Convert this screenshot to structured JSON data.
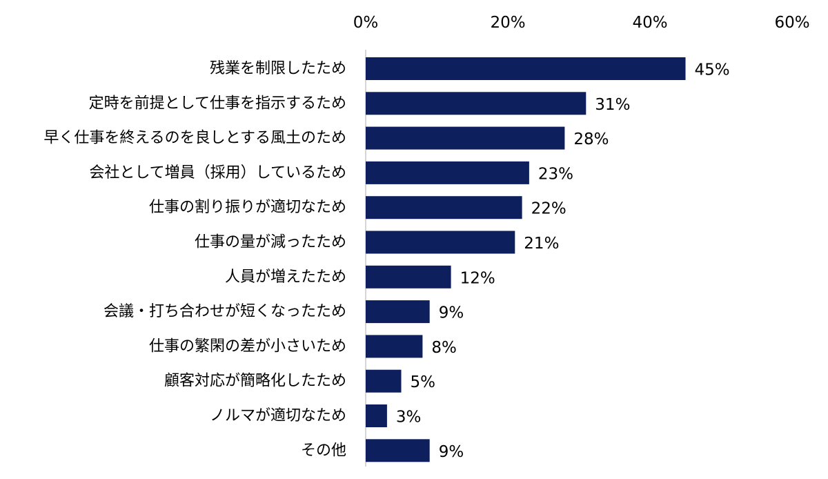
{
  "chart_data": {
    "type": "bar",
    "orientation": "horizontal",
    "categories": [
      "残業を制限したため",
      "定時を前提として仕事を指示するため",
      "早く仕事を終えるのを良しとする風土のため",
      "会社として増員（採用）しているため",
      "仕事の割り振りが適切なため",
      "仕事の量が減ったため",
      "人員が増えたため",
      "会議・打ち合わせが短くなったため",
      "仕事の繁閑の差が小さいため",
      "顧客対応が簡略化したため",
      "ノルマが適切なため",
      "その他"
    ],
    "values": [
      45,
      31,
      28,
      23,
      22,
      21,
      12,
      9,
      8,
      5,
      3,
      9
    ],
    "data_labels": [
      "45%",
      "31%",
      "28%",
      "23%",
      "22%",
      "21%",
      "12%",
      "9%",
      "8%",
      "5%",
      "3%",
      "9%"
    ],
    "xticks": [
      0,
      20,
      40,
      60
    ],
    "xtick_labels": [
      "0%",
      "20%",
      "40%",
      "60%"
    ],
    "xlim": [
      0,
      60
    ],
    "axis_position": "top",
    "grid": false,
    "legend": "none",
    "bar_color": "#0d1f5c",
    "axis_color": "#c8c8c8"
  }
}
